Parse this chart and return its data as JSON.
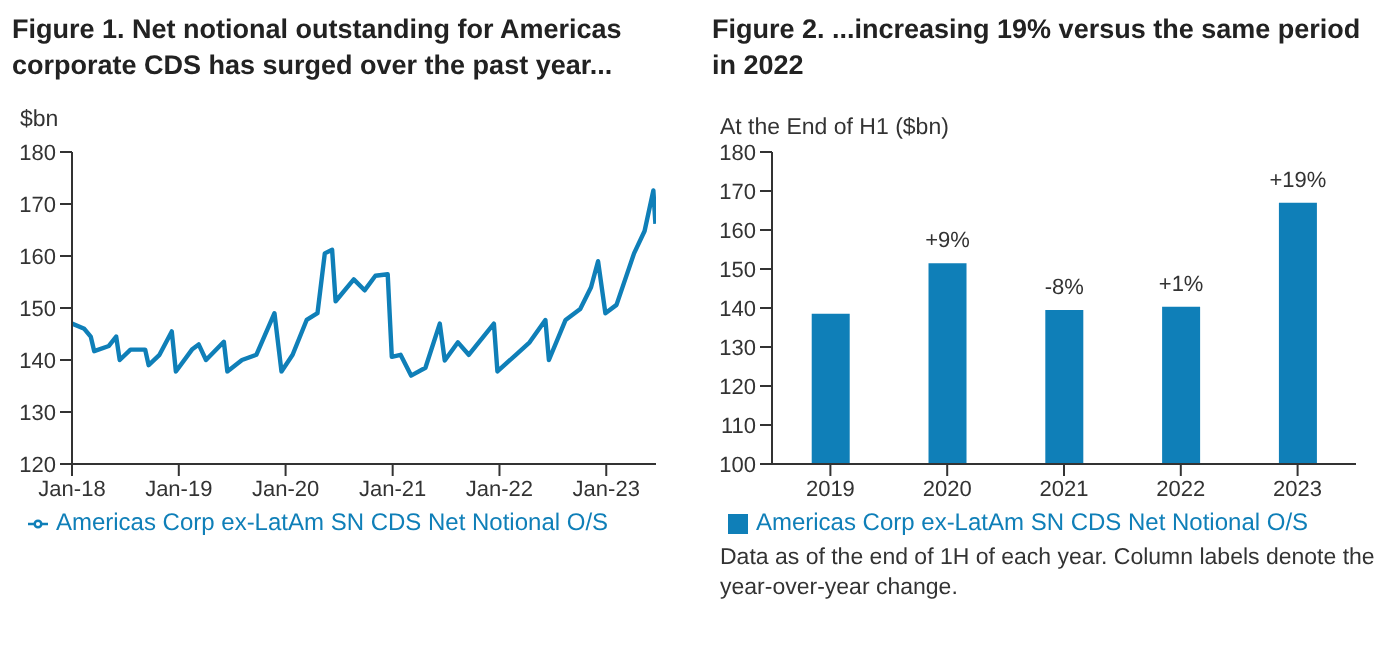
{
  "chart_data": [
    {
      "type": "line",
      "title": "Figure 1. Net notional outstanding for Americas corporate CDS has surged over the past year...",
      "ylabel": "$bn",
      "legend": "bottom",
      "x": [
        "2018-01-01",
        "2018-02-12",
        "2018-03-06",
        "2018-03-18",
        "2018-05-07",
        "2018-06-01",
        "2018-06-13",
        "2018-07-20",
        "2018-09-08",
        "2018-09-20",
        "2018-10-27",
        "2018-12-08",
        "2018-12-22",
        "2019-02-15",
        "2019-03-10",
        "2019-04-04",
        "2019-06-04",
        "2019-06-16",
        "2019-08-05",
        "2019-09-23",
        "2019-11-24",
        "2019-12-18",
        "2020-01-25",
        "2020-03-13",
        "2020-04-19",
        "2020-05-14",
        "2020-06-08",
        "2020-06-20",
        "2020-08-21",
        "2020-09-27",
        "2020-11-03",
        "2020-12-15",
        "2020-12-29",
        "2021-01-28",
        "2021-03-05",
        "2021-04-23",
        "2021-06-11",
        "2021-06-28",
        "2021-08-12",
        "2021-09-18",
        "2021-12-13",
        "2021-12-25",
        "2022-02-26",
        "2022-04-14",
        "2022-06-07",
        "2022-06-19",
        "2022-08-15",
        "2022-10-04",
        "2022-11-10",
        "2022-12-04",
        "2022-12-29",
        "2023-02-05",
        "2023-04-06",
        "2023-05-12",
        "2023-06-11",
        "2023-06-18"
      ],
      "series": [
        {
          "name": "Americas Corp ex-LatAm SN CDS Net Notional O/S",
          "color": "#0f7fb8",
          "values": [
            147,
            146,
            144.5,
            141.7,
            142.7,
            144.5,
            140,
            142,
            142,
            139,
            141,
            145.5,
            137.8,
            142,
            143,
            140,
            143.5,
            137.8,
            140,
            141,
            149,
            137.8,
            141,
            147.7,
            149,
            160.5,
            161.2,
            151.3,
            155.5,
            153.4,
            156.2,
            156.5,
            140.6,
            141,
            137,
            138.5,
            147,
            139.9,
            143.4,
            141,
            147,
            137.8,
            141,
            143.4,
            147.7,
            140,
            147.7,
            149.8,
            154,
            159,
            149,
            150.6,
            160.5,
            164.8,
            172.6,
            166.2
          ]
        }
      ],
      "xlim": [
        "2018-01-01",
        "2023-06-20"
      ],
      "xticks": [
        {
          "value": "2018-01-01",
          "label": "Jan-18"
        },
        {
          "value": "2019-01-01",
          "label": "Jan-19"
        },
        {
          "value": "2020-01-01",
          "label": "Jan-20"
        },
        {
          "value": "2021-01-01",
          "label": "Jan-21"
        },
        {
          "value": "2022-01-01",
          "label": "Jan-22"
        },
        {
          "value": "2023-01-01",
          "label": "Jan-23"
        }
      ],
      "ylim": [
        120,
        180
      ],
      "yticks": [
        120,
        130,
        140,
        150,
        160,
        170,
        180
      ]
    },
    {
      "type": "bar",
      "title": "Figure 2. ...increasing 19% versus the same period in 2022",
      "ylabel": "At the End of H1 ($bn)",
      "legend": "bottom",
      "categories": [
        "2019",
        "2020",
        "2021",
        "2022",
        "2023"
      ],
      "series": [
        {
          "name": "Americas Corp ex-LatAm SN CDS Net Notional O/S",
          "color": "#0f7fb8",
          "values": [
            138.5,
            151.5,
            139.5,
            140.3,
            167
          ]
        }
      ],
      "value_labels": [
        null,
        "+9%",
        "-8%",
        "+1%",
        "+19%"
      ],
      "ylim": [
        100,
        180
      ],
      "yticks": [
        100,
        110,
        120,
        130,
        140,
        150,
        160,
        170,
        180
      ],
      "annotations": [
        "Data as of the end of 1H of each year. Column labels denote the year-over-year change."
      ]
    }
  ]
}
